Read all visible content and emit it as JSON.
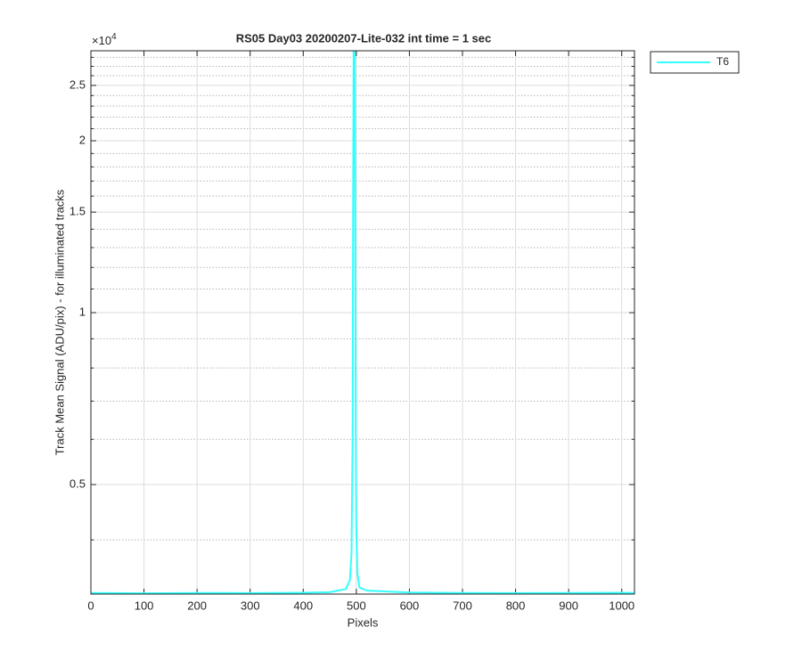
{
  "chart_data": {
    "type": "line",
    "title": "RS05 Day03 20200207-Lite-032 int time = 1 sec",
    "xlabel": "Pixels",
    "ylabel": "Track Mean Signal (ADU/pix) - for illuminated tracks",
    "yexponent": {
      "base": "×10",
      "power": "4"
    },
    "x": [
      0,
      100,
      200,
      300,
      400,
      450,
      480,
      488,
      491,
      493,
      494,
      495,
      496,
      497,
      498,
      499,
      500,
      502,
      506,
      520,
      600,
      700,
      800,
      900,
      1000,
      1023
    ],
    "series": [
      {
        "name": "T6",
        "color": "#33ffff",
        "values": [
          3230,
          3225,
          3230,
          3228,
          3232,
          3240,
          3280,
          3400,
          3800,
          6000,
          15000,
          30000,
          30000,
          30000,
          14000,
          6000,
          4200,
          3500,
          3300,
          3260,
          3235,
          3230,
          3228,
          3230,
          3232,
          3230
        ]
      }
    ],
    "xlim": [
      0,
      1024
    ],
    "xticks": [
      0,
      100,
      200,
      300,
      400,
      500,
      600,
      700,
      800,
      900,
      1000
    ],
    "ylim": [
      3215,
      28750
    ],
    "yscale": "log",
    "yticks": [
      {
        "value": 5000,
        "label": "0.5"
      },
      {
        "value": 10000,
        "label": "1"
      },
      {
        "value": 15000,
        "label": "1.5"
      },
      {
        "value": 20000,
        "label": "2"
      },
      {
        "value": 25000,
        "label": "2.5"
      }
    ],
    "yminorticks": [
      4000,
      6000,
      7000,
      8000,
      9000,
      11000,
      12000,
      13000,
      14000,
      16000,
      17000,
      18000,
      19000,
      21000,
      22000,
      23000,
      24000,
      26000,
      27000,
      28000
    ],
    "grid": true,
    "legend": "outside-top-right"
  }
}
